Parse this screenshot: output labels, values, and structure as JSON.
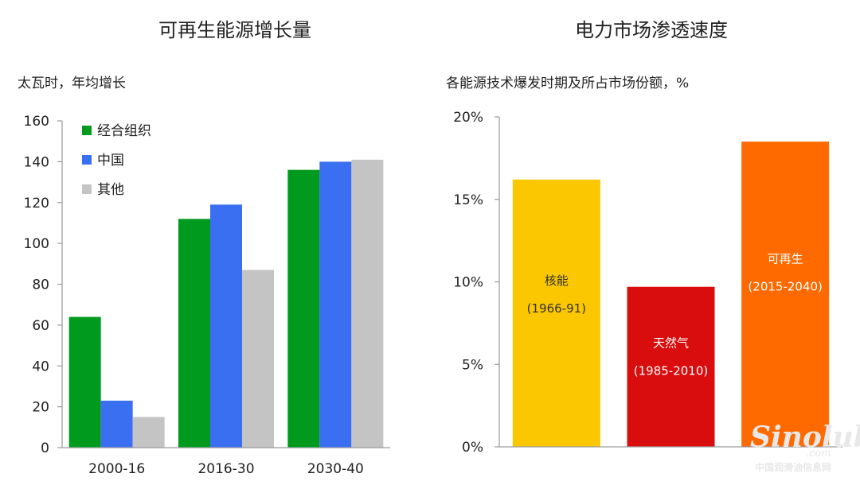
{
  "chart_data": [
    {
      "type": "bar",
      "title": "可再生能源增长量",
      "ylabel": "太瓦时，年均增长",
      "categories": [
        "2000-16",
        "2016-30",
        "2030-40"
      ],
      "series": [
        {
          "name": "经合组织",
          "color": "#009a1e",
          "values": [
            64,
            112,
            136
          ]
        },
        {
          "name": "中国",
          "color": "#3b6ff2",
          "values": [
            23,
            119,
            140
          ]
        },
        {
          "name": "其他",
          "color": "#c4c4c4",
          "values": [
            15,
            87,
            141
          ]
        }
      ],
      "ylim": [
        0,
        160
      ],
      "yticks": [
        "0",
        "20",
        "40",
        "60",
        "80",
        "100",
        "120",
        "140",
        "160"
      ],
      "legend_position": "top-left",
      "grid": false
    },
    {
      "type": "bar",
      "title": "电力市场渗透速度",
      "ylabel": "各能源技术爆发时期及所占市场份额，%",
      "categories": [
        "核能",
        "天然气",
        "可再生"
      ],
      "periods": [
        "(1966-91)",
        "(1985-2010)",
        "(2015-2040)"
      ],
      "values": [
        16.2,
        9.7,
        18.5
      ],
      "colors": [
        "#fbc700",
        "#d90d0d",
        "#ff6a00"
      ],
      "label_colors": [
        "#333333",
        "#ffffff",
        "#ffffff"
      ],
      "ylim": [
        0,
        20
      ],
      "yticks": [
        "0%",
        "5%",
        "10%",
        "15%",
        "20%"
      ],
      "grid": false
    }
  ],
  "watermark": {
    "logo": "Sinolub",
    "domain": ".com",
    "caption": "中国润滑油信息网",
    "color": "#e8e8e8"
  }
}
